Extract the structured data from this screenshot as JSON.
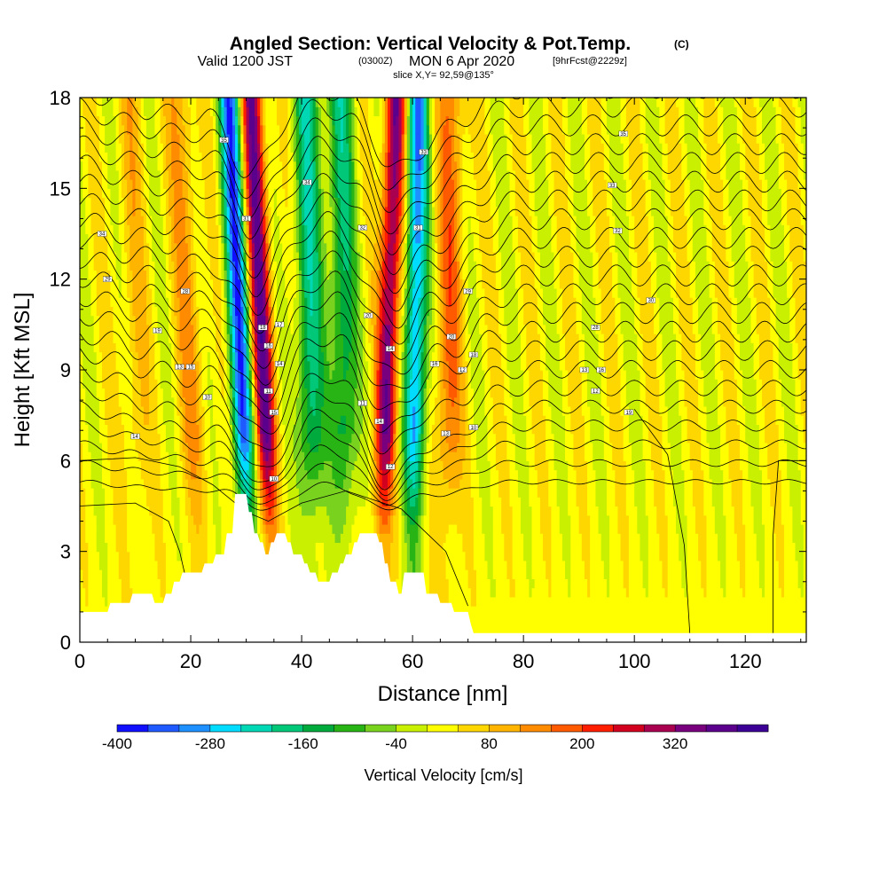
{
  "header": {
    "title": "Angled Section: Vertical Velocity & Pot.Temp.",
    "title_units": "(C)",
    "valid_prefix": "Valid 1200 JST",
    "valid_z": "(0300Z)",
    "valid_date": "MON 6 Apr 2020",
    "forecast": "[9hrFcst@2229z]",
    "slice": "slice X,Y= 92,59@135°"
  },
  "chart_data": {
    "type": "heatmap",
    "title": "Angled Section: Vertical Velocity & Pot.Temp.",
    "xlabel": "Distance [nm]",
    "ylabel": "Height [Kft MSL]",
    "xlim": [
      0,
      131
    ],
    "ylim": [
      0,
      18
    ],
    "x_ticks": [
      "0",
      "20",
      "40",
      "60",
      "80",
      "100",
      "120"
    ],
    "y_ticks": [
      "0",
      "3",
      "6",
      "9",
      "12",
      "15",
      "18"
    ],
    "field": "Vertical Velocity",
    "field_units": "cm/s",
    "contour_field": "Pot.Temp.",
    "contour_units": "C",
    "colorbar": {
      "label": "Vertical Velocity [cm/s]",
      "tick_labels": [
        "-400",
        "-280",
        "-160",
        "-40",
        "80",
        "200",
        "320"
      ],
      "min": -400,
      "max": 440,
      "step": 40,
      "colors": [
        "#1010ff",
        "#1e5aff",
        "#1e90ff",
        "#00dcff",
        "#00d7b4",
        "#00c878",
        "#00aa3c",
        "#28b414",
        "#78d21e",
        "#c8f000",
        "#ffff00",
        "#ffd700",
        "#ffb400",
        "#ff8c00",
        "#ff5a00",
        "#ff1e00",
        "#d2001e",
        "#aa0050",
        "#78007f",
        "#5a008c",
        "#3c0096"
      ]
    },
    "updraft_bands": [
      {
        "x_bottom": 35,
        "x_top": 31,
        "peak": 340
      },
      {
        "x_bottom": 54,
        "x_top": 57,
        "peak": 320
      },
      {
        "x_bottom": 66,
        "x_top": 67,
        "peak": 140
      },
      {
        "x_bottom": 22,
        "x_top": 18,
        "peak": 100
      },
      {
        "x_bottom": 11,
        "x_top": 9,
        "peak": 60
      }
    ],
    "downdraft_bands": [
      {
        "x_bottom": 31,
        "x_top": 27,
        "peak": -360
      },
      {
        "x_bottom": 60,
        "x_top": 61,
        "peak": -320
      },
      {
        "x_bottom": 42,
        "x_top": 41,
        "peak": -200
      },
      {
        "x_bottom": 48,
        "x_top": 47,
        "peak": -180
      }
    ],
    "terrain_kft": [
      [
        0,
        1.0
      ],
      [
        5,
        1.0
      ],
      [
        5.5,
        1.3
      ],
      [
        9,
        1.3
      ],
      [
        9.5,
        1.6
      ],
      [
        13,
        1.6
      ],
      [
        13.5,
        1.3
      ],
      [
        15,
        1.3
      ],
      [
        15.5,
        1.6
      ],
      [
        16.5,
        1.6
      ],
      [
        17,
        2.0
      ],
      [
        18,
        2.0
      ],
      [
        18.5,
        2.3
      ],
      [
        22,
        2.3
      ],
      [
        22.5,
        2.6
      ],
      [
        24,
        2.6
      ],
      [
        24.5,
        2.9
      ],
      [
        26,
        2.9
      ],
      [
        26.5,
        3.6
      ],
      [
        27.5,
        3.6
      ],
      [
        28,
        4.9
      ],
      [
        30,
        4.9
      ],
      [
        30.5,
        4.3
      ],
      [
        31,
        4.3
      ],
      [
        31.5,
        3.6
      ],
      [
        32,
        3.6
      ],
      [
        32.5,
        3.3
      ],
      [
        33,
        3.3
      ],
      [
        33.5,
        2.9
      ],
      [
        34,
        2.9
      ],
      [
        34.5,
        3.3
      ],
      [
        35,
        3.3
      ],
      [
        35.5,
        3.6
      ],
      [
        37,
        3.6
      ],
      [
        37.5,
        3.3
      ],
      [
        38,
        3.3
      ],
      [
        38.5,
        2.9
      ],
      [
        40,
        2.9
      ],
      [
        40.5,
        2.6
      ],
      [
        41,
        2.6
      ],
      [
        41.5,
        2.3
      ],
      [
        42.5,
        2.3
      ],
      [
        43,
        2.0
      ],
      [
        45,
        2.0
      ],
      [
        45.5,
        2.3
      ],
      [
        46.5,
        2.3
      ],
      [
        47,
        2.6
      ],
      [
        47.5,
        2.6
      ],
      [
        48,
        2.9
      ],
      [
        49,
        2.9
      ],
      [
        49.5,
        3.3
      ],
      [
        50,
        3.3
      ],
      [
        50.5,
        3.6
      ],
      [
        53.5,
        3.6
      ],
      [
        54,
        3.3
      ],
      [
        54.5,
        3.3
      ],
      [
        55,
        2.6
      ],
      [
        55.5,
        2.6
      ],
      [
        56,
        2.0
      ],
      [
        57,
        2.0
      ],
      [
        57.5,
        1.6
      ],
      [
        58,
        1.6
      ],
      [
        58.5,
        2.3
      ],
      [
        62,
        2.3
      ],
      [
        62.5,
        1.6
      ],
      [
        64.5,
        1.6
      ],
      [
        65,
        1.3
      ],
      [
        67,
        1.3
      ],
      [
        67.5,
        1.0
      ],
      [
        70,
        1.0
      ],
      [
        70.5,
        0.6
      ],
      [
        71,
        0.3
      ],
      [
        131,
        0.3
      ]
    ],
    "contour_labels": [
      {
        "x": 26,
        "z": 16.6,
        "text": "35"
      },
      {
        "x": 41,
        "z": 15.2,
        "text": "34"
      },
      {
        "x": 62,
        "z": 16.2,
        "text": "33"
      },
      {
        "x": 98,
        "z": 16.8,
        "text": "35"
      },
      {
        "x": 96,
        "z": 15.1,
        "text": "33"
      },
      {
        "x": 4,
        "z": 13.5,
        "text": "34"
      },
      {
        "x": 30,
        "z": 14.0,
        "text": "31"
      },
      {
        "x": 51,
        "z": 13.7,
        "text": "32"
      },
      {
        "x": 61,
        "z": 13.7,
        "text": "31"
      },
      {
        "x": 97,
        "z": 13.6,
        "text": "32"
      },
      {
        "x": 5,
        "z": 12.0,
        "text": "29"
      },
      {
        "x": 19,
        "z": 11.6,
        "text": "28"
      },
      {
        "x": 70,
        "z": 11.6,
        "text": "29"
      },
      {
        "x": 103,
        "z": 11.3,
        "text": "30"
      },
      {
        "x": 14,
        "z": 10.3,
        "text": "19"
      },
      {
        "x": 33,
        "z": 10.4,
        "text": "18"
      },
      {
        "x": 36,
        "z": 10.5,
        "text": "17"
      },
      {
        "x": 52,
        "z": 10.8,
        "text": "20"
      },
      {
        "x": 67,
        "z": 10.1,
        "text": "20"
      },
      {
        "x": 93,
        "z": 10.4,
        "text": "28"
      },
      {
        "x": 34,
        "z": 9.8,
        "text": "16"
      },
      {
        "x": 56,
        "z": 9.7,
        "text": "14"
      },
      {
        "x": 71,
        "z": 9.5,
        "text": "18"
      },
      {
        "x": 18,
        "z": 9.1,
        "text": "13"
      },
      {
        "x": 20,
        "z": 9.1,
        "text": "15"
      },
      {
        "x": 36,
        "z": 9.2,
        "text": "14"
      },
      {
        "x": 64,
        "z": 9.2,
        "text": "16"
      },
      {
        "x": 69,
        "z": 9.0,
        "text": "12"
      },
      {
        "x": 91,
        "z": 9.0,
        "text": "13"
      },
      {
        "x": 94,
        "z": 9.0,
        "text": "16"
      },
      {
        "x": 34,
        "z": 8.3,
        "text": "11"
      },
      {
        "x": 23,
        "z": 8.1,
        "text": "10"
      },
      {
        "x": 51,
        "z": 7.9,
        "text": "11"
      },
      {
        "x": 93,
        "z": 8.3,
        "text": "12"
      },
      {
        "x": 35,
        "z": 7.6,
        "text": "15"
      },
      {
        "x": 54,
        "z": 7.3,
        "text": "14"
      },
      {
        "x": 66,
        "z": 6.9,
        "text": "13"
      },
      {
        "x": 71,
        "z": 7.1,
        "text": "10"
      },
      {
        "x": 99,
        "z": 7.6,
        "text": "19"
      },
      {
        "x": 10,
        "z": 6.8,
        "text": "14"
      },
      {
        "x": 56,
        "z": 5.8,
        "text": "12"
      },
      {
        "x": 35,
        "z": 5.4,
        "text": "10"
      }
    ]
  }
}
